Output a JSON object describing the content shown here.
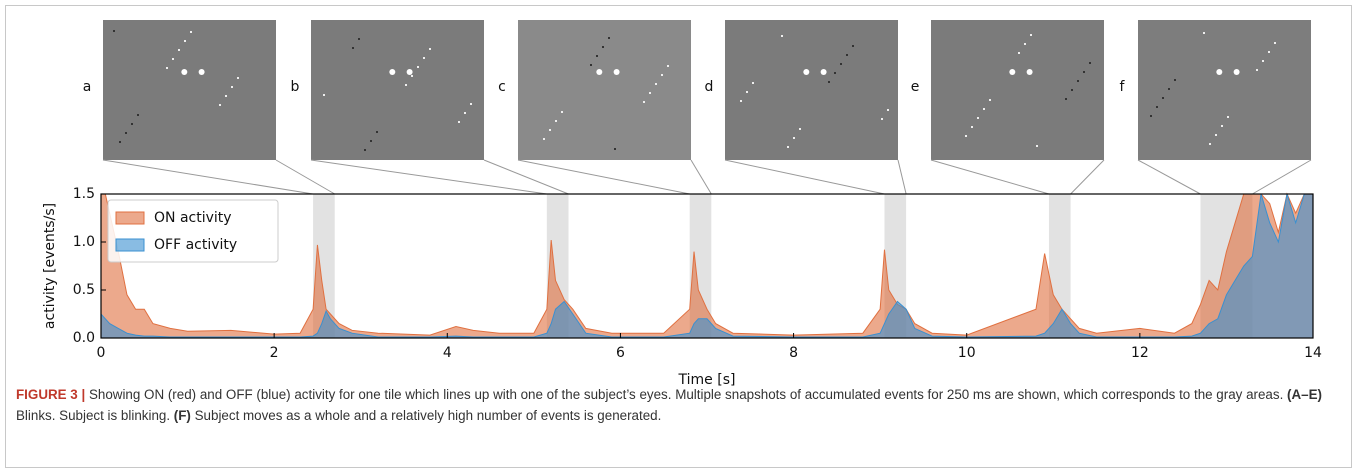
{
  "chart_data": {
    "type": "area",
    "panel_labels": [
      "a",
      "b",
      "c",
      "d",
      "e",
      "f"
    ],
    "highlights": [
      [
        2.45,
        2.7
      ],
      [
        5.15,
        5.4
      ],
      [
        6.8,
        7.05
      ],
      [
        9.05,
        9.3
      ],
      [
        10.95,
        11.2
      ],
      [
        12.7,
        13.3
      ]
    ],
    "xlabel": "Time [s]",
    "ylabel": "activity [events/s]",
    "xlim": [
      0,
      14
    ],
    "ylim": [
      0,
      1.5
    ],
    "xticks": [
      0,
      2,
      4,
      6,
      8,
      10,
      12,
      14
    ],
    "yticks": [
      {
        "value": 0,
        "label": "0.0"
      },
      0.5,
      {
        "value": 1,
        "label": "1.0"
      },
      1.5
    ],
    "legend": "upper left",
    "x": [
      0,
      0.05,
      0.1,
      0.2,
      0.3,
      0.4,
      0.5,
      0.6,
      0.8,
      1.0,
      1.5,
      2.0,
      2.3,
      2.45,
      2.5,
      2.55,
      2.6,
      2.65,
      2.75,
      2.9,
      3.2,
      3.8,
      4.1,
      4.3,
      4.6,
      5.0,
      5.15,
      5.2,
      5.25,
      5.35,
      5.45,
      5.6,
      5.9,
      6.5,
      6.8,
      6.85,
      6.9,
      7.0,
      7.1,
      7.3,
      8.0,
      8.8,
      9.0,
      9.05,
      9.1,
      9.2,
      9.3,
      9.4,
      9.6,
      10.0,
      10.8,
      10.9,
      11.0,
      11.1,
      11.2,
      11.3,
      11.5,
      12.0,
      12.4,
      12.6,
      12.7,
      12.8,
      12.9,
      13.0,
      13.1,
      13.2,
      13.3,
      13.4,
      13.5,
      13.6,
      13.7,
      13.8,
      13.9,
      14.0
    ],
    "series": [
      {
        "name": "ON activity",
        "color": "#e07040",
        "values": [
          1.5,
          1.5,
          1.3,
          0.9,
          0.45,
          0.3,
          0.3,
          0.15,
          0.1,
          0.07,
          0.08,
          0.04,
          0.05,
          0.3,
          0.97,
          0.6,
          0.3,
          0.25,
          0.15,
          0.08,
          0.05,
          0.03,
          0.12,
          0.08,
          0.05,
          0.05,
          0.3,
          1.02,
          0.6,
          0.4,
          0.3,
          0.1,
          0.05,
          0.05,
          0.3,
          0.9,
          0.5,
          0.3,
          0.15,
          0.05,
          0.03,
          0.05,
          0.3,
          0.92,
          0.5,
          0.35,
          0.3,
          0.15,
          0.05,
          0.03,
          0.3,
          0.88,
          0.45,
          0.3,
          0.2,
          0.1,
          0.05,
          0.1,
          0.05,
          0.15,
          0.35,
          0.6,
          0.5,
          0.9,
          1.2,
          1.5,
          1.5,
          1.5,
          1.4,
          1.1,
          1.5,
          1.3,
          1.5,
          1.5
        ]
      },
      {
        "name": "OFF activity",
        "color": "#3a90d0",
        "values": [
          0.25,
          0.2,
          0.15,
          0.1,
          0.05,
          0.03,
          0.02,
          0.02,
          0.01,
          0.01,
          0.01,
          0.01,
          0.01,
          0.02,
          0.05,
          0.15,
          0.28,
          0.2,
          0.1,
          0.05,
          0.01,
          0.01,
          0.02,
          0.01,
          0.01,
          0.01,
          0.05,
          0.15,
          0.3,
          0.38,
          0.25,
          0.05,
          0.01,
          0.01,
          0.05,
          0.15,
          0.2,
          0.2,
          0.1,
          0.02,
          0.01,
          0.01,
          0.05,
          0.15,
          0.25,
          0.38,
          0.3,
          0.1,
          0.02,
          0.01,
          0.02,
          0.05,
          0.15,
          0.3,
          0.15,
          0.05,
          0.01,
          0.01,
          0.01,
          0.02,
          0.05,
          0.15,
          0.2,
          0.45,
          0.6,
          0.75,
          0.85,
          1.5,
          1.2,
          1.0,
          1.5,
          1.2,
          1.5,
          1.5
        ]
      }
    ]
  },
  "caption": [
    {
      "text": "FIGURE 3 |",
      "bold": true
    },
    {
      "text": " Showing ON (red) and OFF (blue) activity for one tile which lines up with one of the subject’s eyes. Multiple snapshots of accumulated events for 250 ms are shown, which corresponds to the gray areas. ",
      "bold": false
    },
    {
      "text": "(A–E)",
      "bold": true
    },
    {
      "text": " Blinks. Subject is blinking. ",
      "bold": false
    },
    {
      "text": "(F)",
      "bold": true
    },
    {
      "text": " Subject moves as a whole and a relatively high number of events is generated.",
      "bold": false
    }
  ]
}
